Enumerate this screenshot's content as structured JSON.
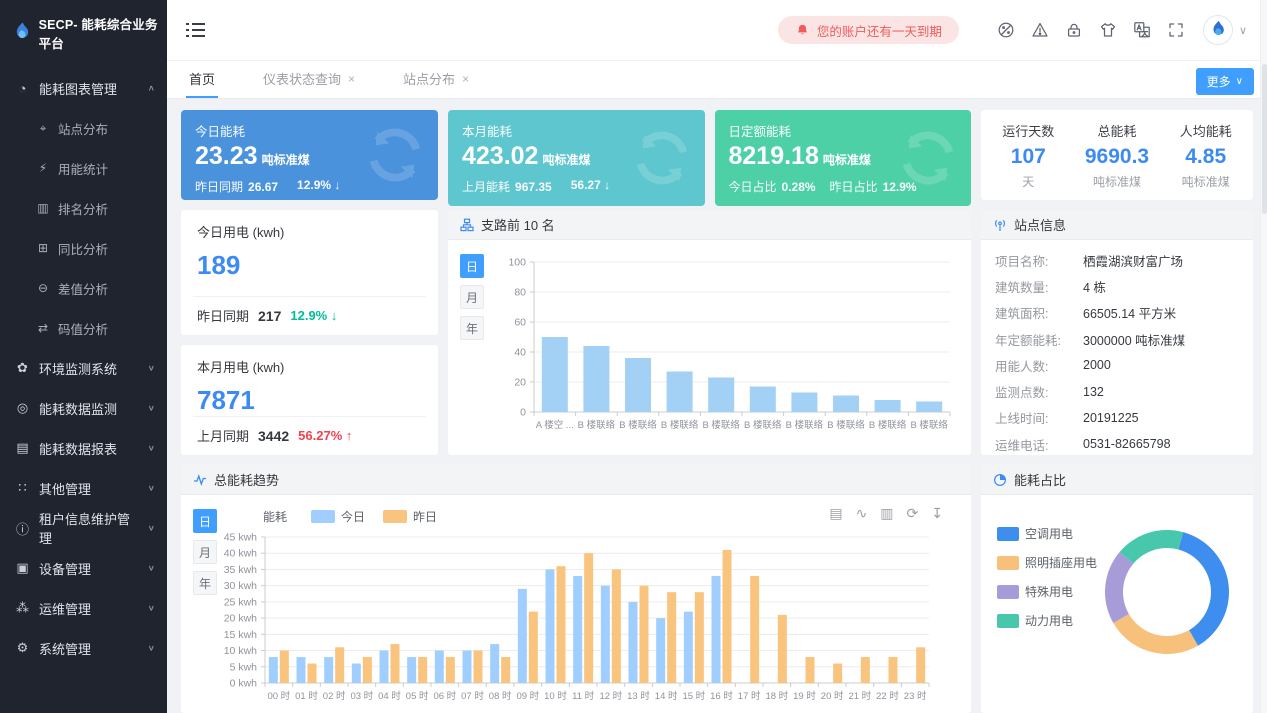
{
  "brand": {
    "title": "SECP- 能耗综合业务平台"
  },
  "header": {
    "notice": "您的账户还有一天到期",
    "icons": [
      {
        "name": "theme-palette-icon"
      },
      {
        "name": "alert-icon"
      },
      {
        "name": "lock-icon"
      },
      {
        "name": "skin-icon"
      },
      {
        "name": "translate-icon"
      },
      {
        "name": "fullscreen-icon"
      }
    ]
  },
  "sidebar": {
    "menu": [
      {
        "name": "menu-energy-charts",
        "label": "能耗图表管理",
        "glyph": "◔",
        "expanded": true,
        "children": [
          {
            "name": "submenu-site-distribution",
            "label": "站点分布",
            "glyph": "⌖"
          },
          {
            "name": "submenu-energy-usage-stats",
            "label": "用能统计",
            "glyph": "⚡"
          },
          {
            "name": "submenu-ranking-analysis",
            "label": "排名分析",
            "glyph": "▥"
          },
          {
            "name": "submenu-yoy-analysis",
            "label": "同比分析",
            "glyph": "⊞"
          },
          {
            "name": "submenu-difference-analysis",
            "label": "差值分析",
            "glyph": "⊖"
          },
          {
            "name": "submenu-code-value-analysis",
            "label": "码值分析",
            "glyph": "⇄"
          }
        ]
      },
      {
        "name": "menu-environment-monitoring",
        "label": "环境监测系统",
        "glyph": "✿"
      },
      {
        "name": "menu-energy-data-monitoring",
        "label": "能耗数据监测",
        "glyph": "◎"
      },
      {
        "name": "menu-energy-data-reports",
        "label": "能耗数据报表",
        "glyph": "▤"
      },
      {
        "name": "menu-other-management",
        "label": "其他管理",
        "glyph": "∷"
      },
      {
        "name": "menu-tenant-info-management",
        "label": "租户信息维护管理",
        "glyph": "ⓘ"
      },
      {
        "name": "menu-device-management",
        "label": "设备管理",
        "glyph": "▣"
      },
      {
        "name": "menu-ops-management",
        "label": "运维管理",
        "glyph": "⁂"
      },
      {
        "name": "menu-system-management",
        "label": "系统管理",
        "glyph": "⚙"
      }
    ]
  },
  "tabbar": {
    "tabs": [
      {
        "label": "首页",
        "active": true,
        "closable": false
      },
      {
        "label": "仪表状态查询",
        "active": false,
        "closable": true
      },
      {
        "label": "站点分布",
        "active": false,
        "closable": true
      }
    ],
    "more_label": "更多"
  },
  "kpi_cards": [
    {
      "name": "kpi-today-energy",
      "title": "今日能耗",
      "value": "23.23",
      "unit": "吨标准煤",
      "color": "#4a92dc",
      "sub": [
        {
          "label": "昨日同期",
          "value": "26.67"
        },
        {
          "label": "",
          "value": "12.9% ↓"
        }
      ]
    },
    {
      "name": "kpi-month-energy",
      "title": "本月能耗",
      "value": "423.02",
      "unit": "吨标准煤",
      "color": "#5ec6ce",
      "sub": [
        {
          "label": "上月能耗",
          "value": "967.35"
        },
        {
          "label": "",
          "value": "56.27 ↓"
        }
      ]
    },
    {
      "name": "kpi-daily-quota-energy",
      "title": "日定额能耗",
      "value": "8219.18",
      "unit": "吨标准煤",
      "color": "#4ed0a7",
      "sub": [
        {
          "label": "今日占比",
          "value": "0.28%"
        },
        {
          "label": "昨日占比",
          "value": "12.9%"
        }
      ]
    }
  ],
  "stats_card": {
    "items": [
      {
        "label": "运行天数",
        "value": "107",
        "unit": "天"
      },
      {
        "label": "总能耗",
        "value": "9690.3",
        "unit": "吨标准煤"
      },
      {
        "label": "人均能耗",
        "value": "4.85",
        "unit": "吨标准煤"
      }
    ]
  },
  "usage_panels": [
    {
      "name": "panel-today-electricity",
      "title": "今日用电 (kwh)",
      "value": "189",
      "sub_label": "昨日同期",
      "sub_value": "217",
      "delta": "12.9% ↓",
      "delta_color": "#00bd9a"
    },
    {
      "name": "panel-month-electricity",
      "title": "本月用电 (kwh)",
      "value": "7871",
      "sub_label": "上月同期",
      "sub_value": "3442",
      "delta": "56.27% ↑",
      "delta_color": "#f3404e"
    }
  ],
  "branch_panel": {
    "title": "支路前 10 名",
    "time_buttons": [
      "日",
      "月",
      "年"
    ],
    "active_button": "日"
  },
  "site_info": {
    "title": "站点信息",
    "rows": [
      {
        "label": "项目名称:",
        "value": "栖霞湖滨财富广场"
      },
      {
        "label": "建筑数量:",
        "value": "4 栋"
      },
      {
        "label": "建筑面积:",
        "value": "66505.14 平方米"
      },
      {
        "label": "年定额能耗:",
        "value": "3000000 吨标准煤"
      },
      {
        "label": "用能人数:",
        "value": "2000"
      },
      {
        "label": "监测点数:",
        "value": "132"
      },
      {
        "label": "上线时间:",
        "value": "20191225"
      },
      {
        "label": "运维电话:",
        "value": "0531-82665798"
      }
    ]
  },
  "trend_panel": {
    "title": "总能耗趋势",
    "time_buttons": [
      "日",
      "月",
      "年"
    ],
    "active_button": "日",
    "ylabel": "能耗",
    "toolbox": [
      {
        "name": "data-view-icon",
        "glyph": "▤"
      },
      {
        "name": "line-chart-switch-icon",
        "glyph": "∿"
      },
      {
        "name": "bar-chart-switch-icon",
        "glyph": "▥"
      },
      {
        "name": "restore-icon",
        "glyph": "⟳"
      },
      {
        "name": "download-icon",
        "glyph": "↧"
      }
    ]
  },
  "ratio_panel": {
    "title": "能耗占比"
  },
  "chart_data": [
    {
      "type": "bar",
      "title": "支路前 10 名",
      "categories": [
        "A 楼空 ...",
        "B 楼联络",
        "B 楼联络",
        "B 楼联络",
        "B 楼联络",
        "B 楼联络",
        "B 楼联络",
        "B 楼联络",
        "B 楼联络",
        "B 楼联络"
      ],
      "values": [
        50,
        44,
        36,
        27,
        23,
        17,
        13,
        11,
        8,
        7
      ],
      "ylim": [
        0,
        100
      ],
      "ytick_step": 20,
      "unit": "",
      "bar_color": "#a3d1f5",
      "grid": true,
      "legend_position": "none"
    },
    {
      "type": "bar",
      "title": "总能耗趋势",
      "ylabel": "能耗",
      "categories": [
        "00 时",
        "01 时",
        "02 时",
        "03 时",
        "04 时",
        "05 时",
        "06 时",
        "07 时",
        "08 时",
        "09 时",
        "10 时",
        "11 时",
        "12 时",
        "13 时",
        "14 时",
        "15 时",
        "16 时",
        "17 时",
        "18 时",
        "19 时",
        "20 时",
        "21 时",
        "22 时",
        "23 时"
      ],
      "series": [
        {
          "name": "今日",
          "color": "#a0cfff",
          "values": [
            8,
            8,
            8,
            6,
            10,
            8,
            10,
            10,
            12,
            29,
            35,
            33,
            30,
            25,
            20,
            22,
            33,
            0,
            0,
            0,
            0,
            0,
            0,
            0
          ]
        },
        {
          "name": "昨日",
          "color": "#f9c47d",
          "values": [
            10,
            6,
            11,
            8,
            12,
            8,
            8,
            10,
            8,
            22,
            36,
            40,
            35,
            30,
            28,
            28,
            41,
            33,
            21,
            8,
            6,
            8,
            8,
            11
          ]
        }
      ],
      "ylim": [
        0,
        45
      ],
      "ytick_step": 5,
      "unit": " kwh",
      "grid": true,
      "legend_position": "top"
    },
    {
      "type": "pie",
      "title": "能耗占比",
      "start_angle": 15,
      "segments": [
        {
          "name": "空调用电",
          "pct": 37.5,
          "color": "#3e8ef0"
        },
        {
          "name": "照明插座用电",
          "pct": 25,
          "color": "#f7c17c"
        },
        {
          "name": "特殊用电",
          "pct": 19.5,
          "color": "#a79bd8"
        },
        {
          "name": "动力用电",
          "pct": 18,
          "color": "#47c8ac"
        }
      ],
      "legend_position": "left"
    }
  ]
}
